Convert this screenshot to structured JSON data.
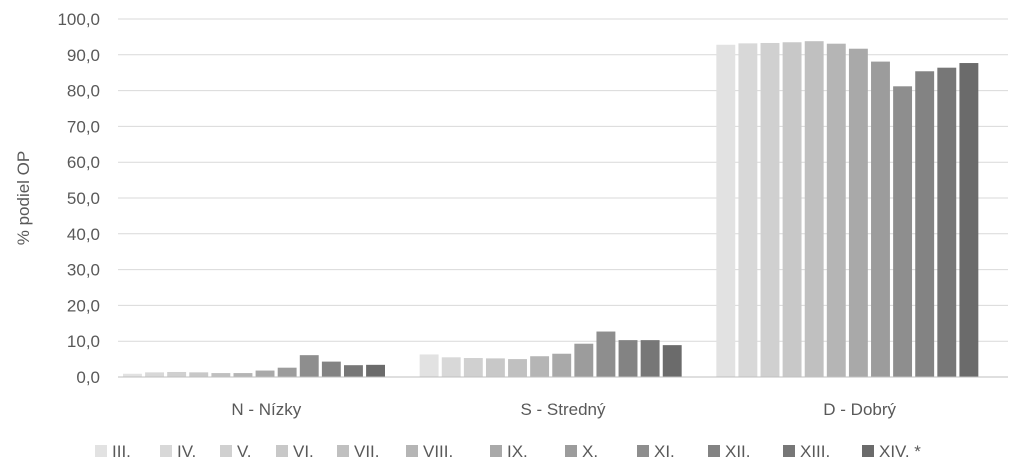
{
  "chart_data": {
    "type": "bar",
    "ylabel": "% podiel OP",
    "ylim": [
      0,
      100
    ],
    "yticks": [
      "0,0",
      "10,0",
      "20,0",
      "30,0",
      "40,0",
      "50,0",
      "60,0",
      "70,0",
      "80,0",
      "90,0",
      "100,0"
    ],
    "grid": true,
    "legend_position": "bottom",
    "categories": [
      "N - Nízky",
      "S - Stredný",
      "D - Dobrý"
    ],
    "series": [
      {
        "name": "III.",
        "color": "#e2e2e2",
        "values": [
          0.9,
          6.3,
          92.8
        ]
      },
      {
        "name": "IV.",
        "color": "#d8d8d8",
        "values": [
          1.3,
          5.5,
          93.2
        ]
      },
      {
        "name": "V.",
        "color": "#d0d0d0",
        "values": [
          1.4,
          5.3,
          93.3
        ]
      },
      {
        "name": "VI.",
        "color": "#c8c8c8",
        "values": [
          1.3,
          5.2,
          93.5
        ]
      },
      {
        "name": "VII.",
        "color": "#c0c0c0",
        "values": [
          1.1,
          5.0,
          93.8
        ]
      },
      {
        "name": "VIII.",
        "color": "#b5b5b5",
        "values": [
          1.1,
          5.8,
          93.1
        ]
      },
      {
        "name": "IX.",
        "color": "#a9a9a9",
        "values": [
          1.8,
          6.5,
          91.7
        ]
      },
      {
        "name": "X.",
        "color": "#9c9c9c",
        "values": [
          2.6,
          9.3,
          88.1
        ]
      },
      {
        "name": "XI.",
        "color": "#8e8e8e",
        "values": [
          6.1,
          12.7,
          81.2
        ]
      },
      {
        "name": "XII.",
        "color": "#838383",
        "values": [
          4.3,
          10.3,
          85.4
        ]
      },
      {
        "name": "XIII.",
        "color": "#777777",
        "values": [
          3.3,
          10.3,
          86.4
        ]
      },
      {
        "name": "XIV. *",
        "color": "#6b6b6b",
        "values": [
          3.4,
          8.9,
          87.7
        ]
      }
    ]
  }
}
